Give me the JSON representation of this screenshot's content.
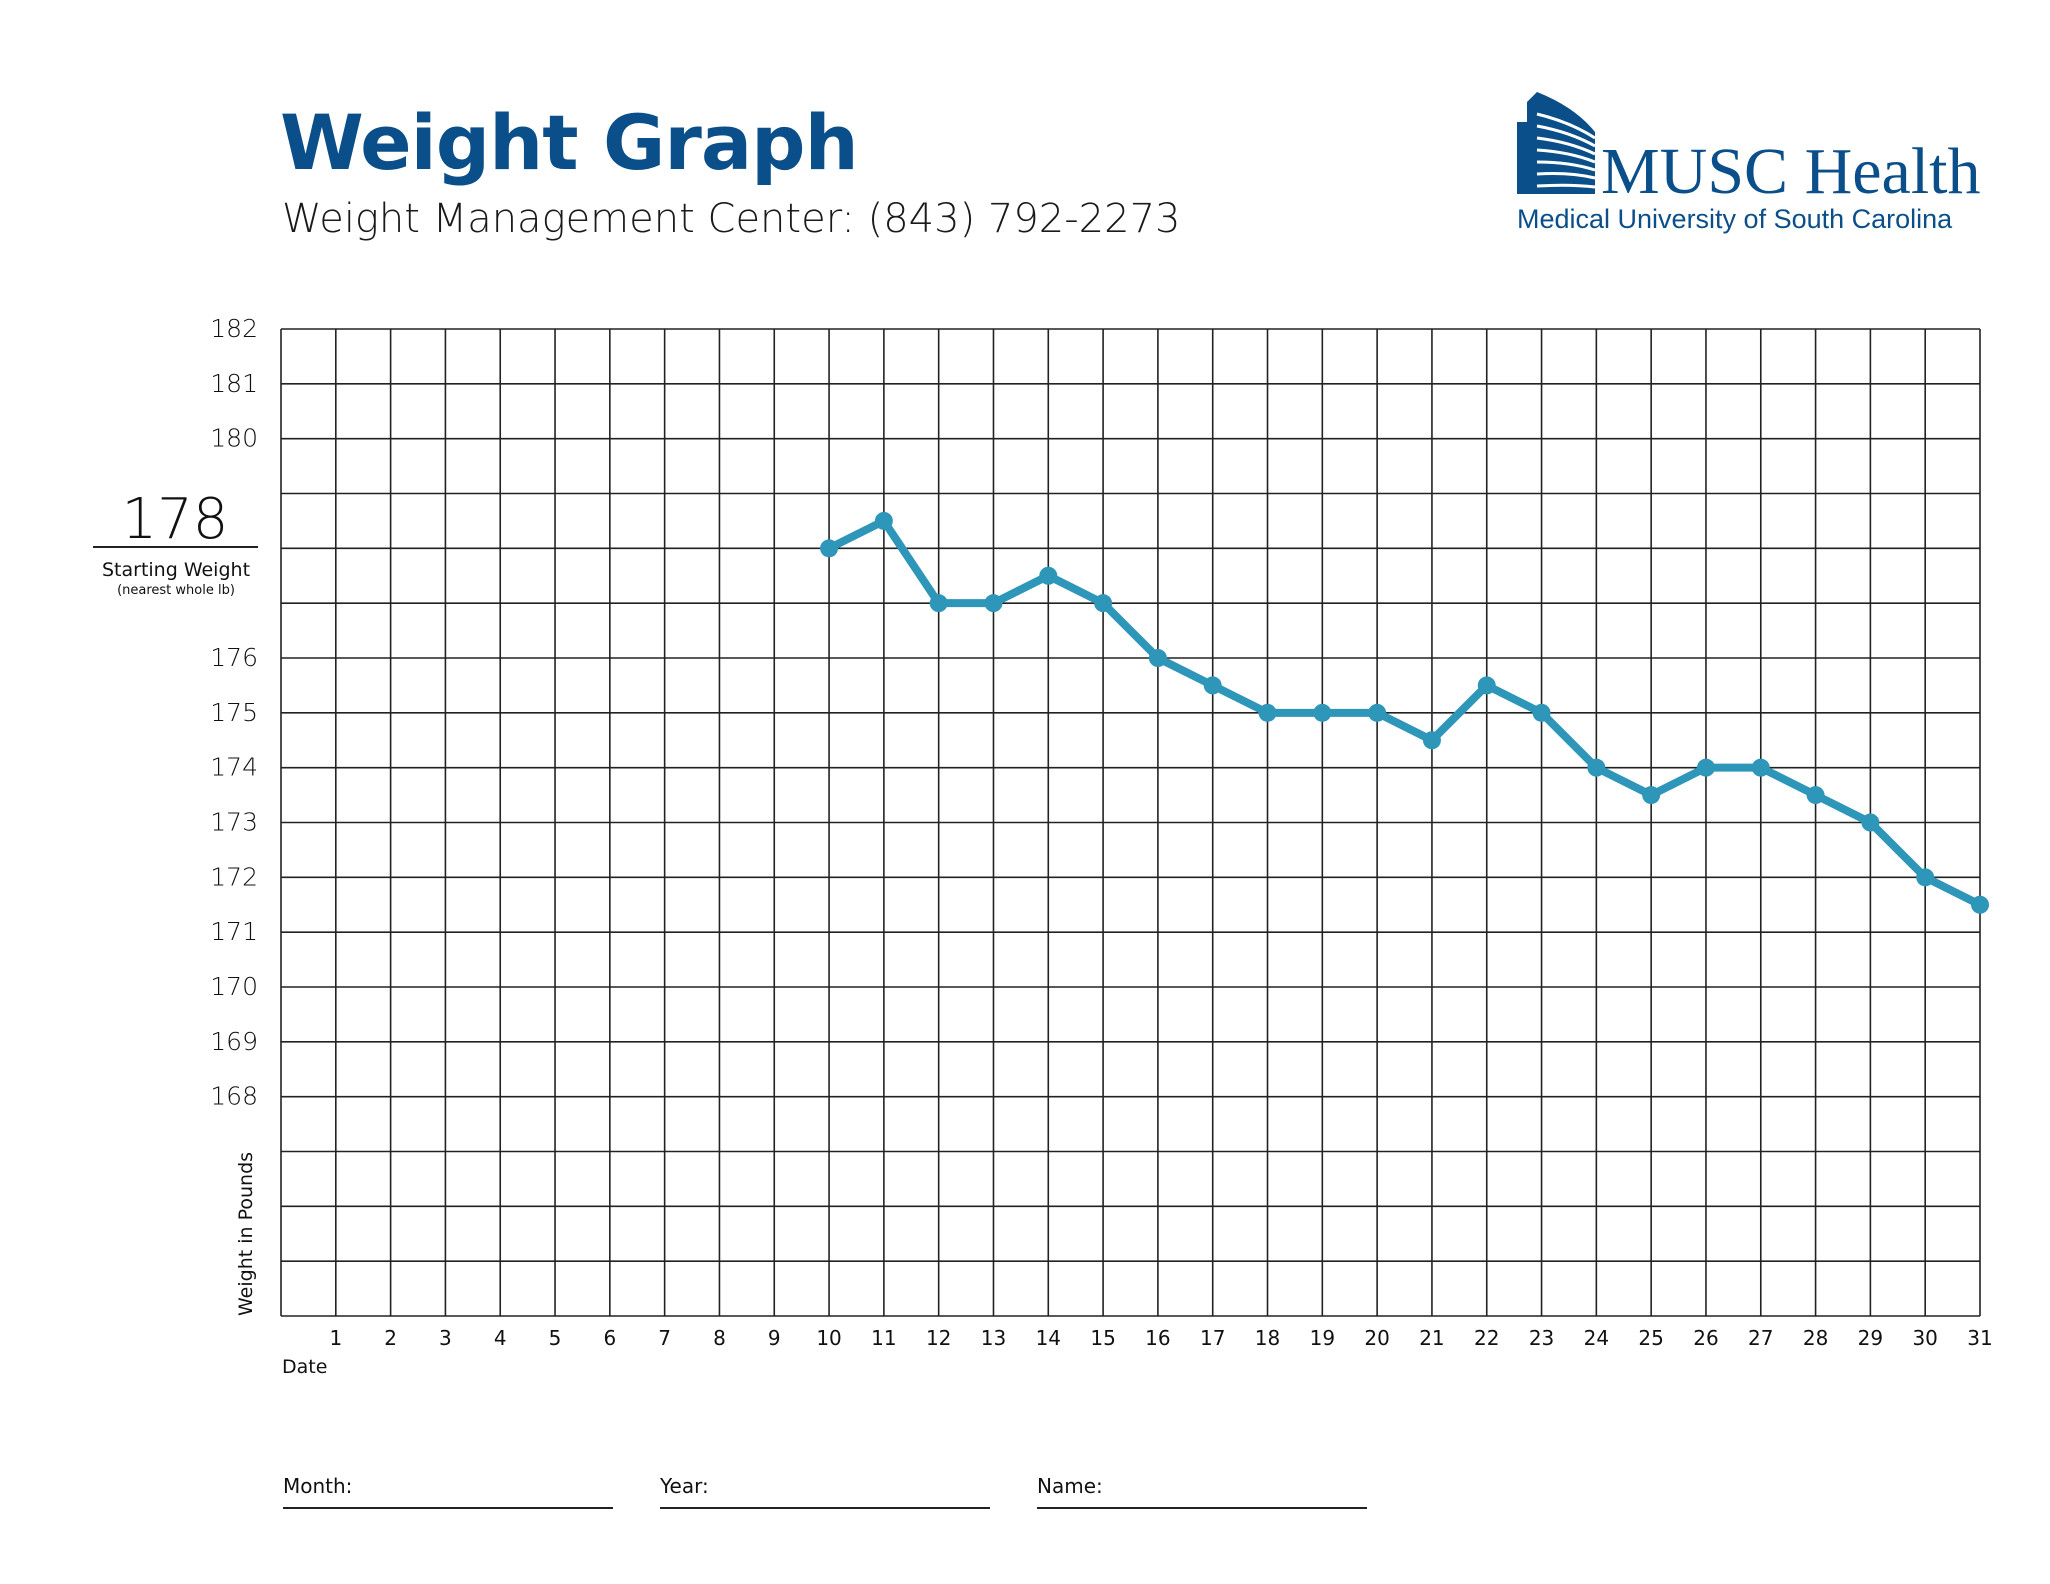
{
  "header": {
    "title": "Weight Graph",
    "subtitle": "Weight Management Center: (843) 792-2273"
  },
  "logo": {
    "name": "MUSC Health",
    "tagline": "Medical University of South Carolina",
    "color": "#0b4f8a"
  },
  "starting_weight": {
    "value": "178",
    "label": "Starting Weight",
    "note": "(nearest whole lb)"
  },
  "chart_data": {
    "type": "line",
    "title": "Weight Graph",
    "xlabel": "Date",
    "ylabel": "Weight in Pounds",
    "xlim": [
      0,
      31
    ],
    "ylim": [
      164,
      182
    ],
    "grid": true,
    "x_ticks": [
      1,
      2,
      3,
      4,
      5,
      6,
      7,
      8,
      9,
      10,
      11,
      12,
      13,
      14,
      15,
      16,
      17,
      18,
      19,
      20,
      21,
      22,
      23,
      24,
      25,
      26,
      27,
      28,
      29,
      30,
      31
    ],
    "y_tick_labels": [
      182,
      181,
      180,
      176,
      175,
      174,
      173,
      172,
      171,
      170,
      169,
      168
    ],
    "line_color": "#2e96b9",
    "series": [
      {
        "x": [
          10,
          11,
          12,
          13,
          14,
          15,
          16,
          17,
          18,
          19,
          20,
          21,
          22,
          23,
          24,
          25,
          26,
          27,
          28,
          29,
          30,
          31
        ],
        "y": [
          178,
          178.5,
          177,
          177,
          177.5,
          177,
          176,
          175.5,
          175,
          175,
          175,
          174.5,
          175.5,
          175,
          174,
          173.5,
          174,
          174,
          173.5,
          173,
          172,
          171.5
        ]
      }
    ]
  },
  "footer": {
    "month_label": "Month:",
    "year_label": "Year:",
    "name_label": "Name:"
  }
}
